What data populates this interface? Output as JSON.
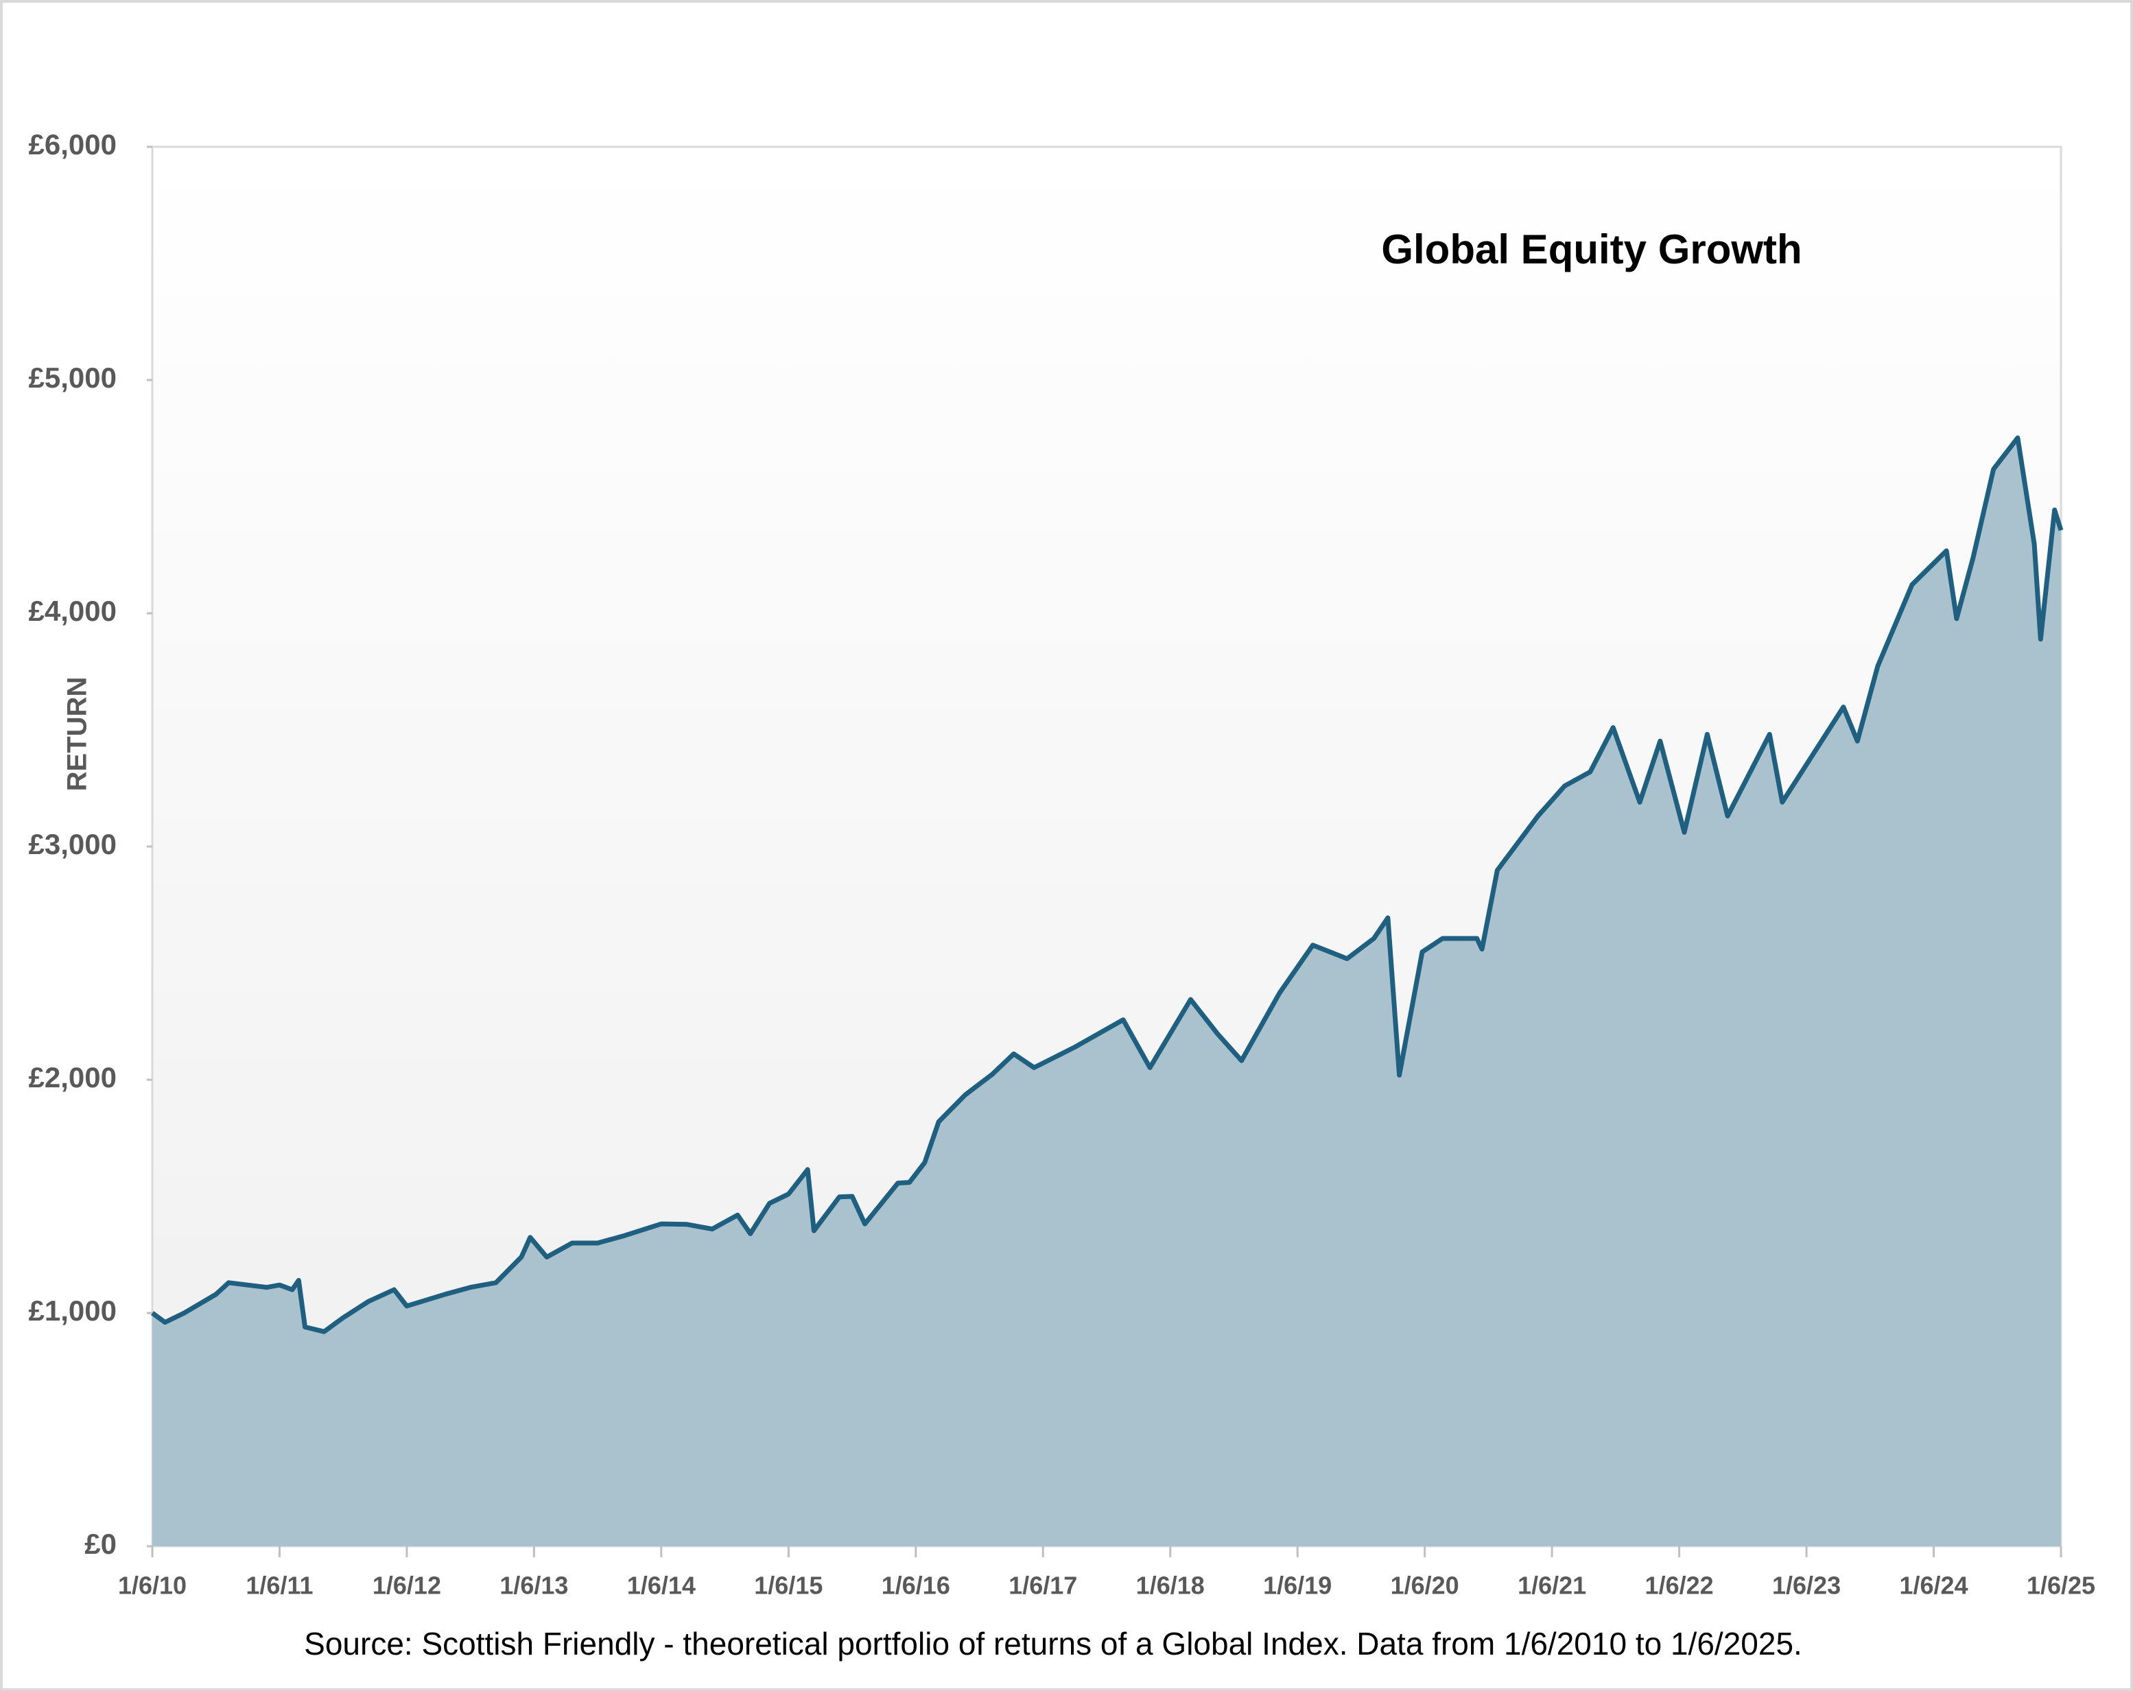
{
  "chart_data": {
    "type": "area",
    "title": "Global Equity Growth",
    "y_label": "RETURN",
    "source": "Source: Scottish Friendly - theoretical portfolio of returns of a Global Index. Data from 1/6/2010 to 1/6/2025.",
    "series": [
      {
        "name": "Global Equity Growth",
        "color": "#1f5f7f",
        "fill": "#aac2ce",
        "x": [
          2010.0,
          2010.1,
          2010.25,
          2010.5,
          2010.6,
          2010.9,
          2011.0,
          2011.1,
          2011.15,
          2011.2,
          2011.35,
          2011.5,
          2011.7,
          2011.9,
          2012.0,
          2012.3,
          2012.5,
          2012.7,
          2012.9,
          2012.97,
          2013.1,
          2013.3,
          2013.5,
          2013.7,
          2014.0,
          2014.2,
          2014.4,
          2014.6,
          2014.7,
          2014.85,
          2015.0,
          2015.15,
          2015.2,
          2015.4,
          2015.5,
          2015.6,
          2015.86,
          2015.95,
          2016.07,
          2016.18,
          2016.39,
          2016.6,
          2016.77,
          2016.93,
          2017.25,
          2017.63,
          2017.84,
          2018.16,
          2018.37,
          2018.56,
          2018.86,
          2019.12,
          2019.39,
          2019.6,
          2019.71,
          2019.8,
          2019.98,
          2020.14,
          2020.41,
          2020.45,
          2020.57,
          2020.89,
          2021.1,
          2021.3,
          2021.48,
          2021.69,
          2021.85,
          2022.04,
          2022.22,
          2022.38,
          2022.71,
          2022.81,
          2023.29,
          2023.4,
          2023.56,
          2023.83,
          2024.1,
          2024.18,
          2024.31,
          2024.47,
          2024.66,
          2024.79,
          2024.84,
          2024.95,
          2025.0
        ],
        "values": [
          1000,
          960,
          1000,
          1080,
          1130,
          1110,
          1120,
          1100,
          1140,
          940,
          920,
          980,
          1050,
          1100,
          1030,
          1080,
          1110,
          1130,
          1240,
          1324,
          1240,
          1300,
          1300,
          1330,
          1382,
          1380,
          1360,
          1420,
          1340,
          1470,
          1510,
          1615,
          1353,
          1498,
          1500,
          1382,
          1557,
          1560,
          1645,
          1820,
          1936,
          2023,
          2111,
          2052,
          2140,
          2257,
          2052,
          2344,
          2198,
          2082,
          2373,
          2577,
          2519,
          2606,
          2694,
          2020,
          2548,
          2606,
          2606,
          2560,
          2898,
          3131,
          3260,
          3320,
          3510,
          3190,
          3452,
          3061,
          3481,
          3131,
          3481,
          3190,
          3598,
          3452,
          3773,
          4123,
          4268,
          3977,
          4239,
          4618,
          4752,
          4297,
          3889,
          4443,
          4356
        ]
      }
    ],
    "xlim": [
      2010,
      2025
    ],
    "xticks": [
      {
        "value": 2010,
        "label": "1/6/10"
      },
      {
        "value": 2011,
        "label": "1/6/11"
      },
      {
        "value": 2012,
        "label": "1/6/12"
      },
      {
        "value": 2013,
        "label": "1/6/13"
      },
      {
        "value": 2014,
        "label": "1/6/14"
      },
      {
        "value": 2015,
        "label": "1/6/15"
      },
      {
        "value": 2016,
        "label": "1/6/16"
      },
      {
        "value": 2017,
        "label": "1/6/17"
      },
      {
        "value": 2018,
        "label": "1/6/18"
      },
      {
        "value": 2019,
        "label": "1/6/19"
      },
      {
        "value": 2020,
        "label": "1/6/20"
      },
      {
        "value": 2021,
        "label": "1/6/21"
      },
      {
        "value": 2022,
        "label": "1/6/22"
      },
      {
        "value": 2023,
        "label": "1/6/23"
      },
      {
        "value": 2024,
        "label": "1/6/24"
      },
      {
        "value": 2025,
        "label": "1/6/25"
      }
    ],
    "ylim": [
      0,
      6000
    ],
    "yticks": [
      {
        "value": 0,
        "label": "£0"
      },
      {
        "value": 1000,
        "label": "£1,000"
      },
      {
        "value": 2000,
        "label": "£2,000"
      },
      {
        "value": 3000,
        "label": "£3,000"
      },
      {
        "value": 4000,
        "label": "£4,000"
      },
      {
        "value": 5000,
        "label": "£5,000"
      },
      {
        "value": 6000,
        "label": "£6,000"
      }
    ]
  }
}
